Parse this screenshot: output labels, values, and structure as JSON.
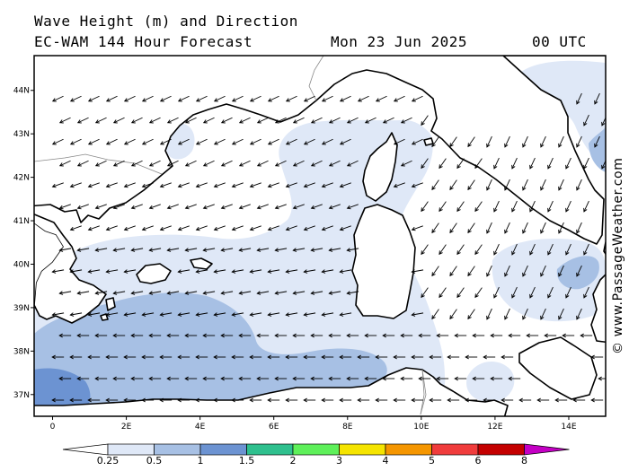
{
  "header": {
    "line1": "Wave Height (m) and Direction",
    "line2": "EC-WAM 144 Hour Forecast",
    "date": "Mon 23 Jun 2025",
    "time": "00 UTC"
  },
  "copyright": "© www.PassageWeather.com",
  "map": {
    "lon_range": [
      -0.5,
      15
    ],
    "lat_range": [
      36.5,
      44.8
    ],
    "lon_ticks": [
      {
        "lon": 0,
        "label": "0"
      },
      {
        "lon": 2,
        "label": "2E"
      },
      {
        "lon": 4,
        "label": "4E"
      },
      {
        "lon": 6,
        "label": "6E"
      },
      {
        "lon": 8,
        "label": "8E"
      },
      {
        "lon": 10,
        "label": "10E"
      },
      {
        "lon": 12,
        "label": "12E"
      },
      {
        "lon": 14,
        "label": "14E"
      }
    ],
    "lat_ticks": [
      {
        "lat": 37,
        "label": "37N"
      },
      {
        "lat": 38,
        "label": "38N"
      },
      {
        "lat": 39,
        "label": "39N"
      },
      {
        "lat": 40,
        "label": "40N"
      },
      {
        "lat": 41,
        "label": "41N"
      },
      {
        "lat": 42,
        "label": "42N"
      },
      {
        "lat": 43,
        "label": "43N"
      },
      {
        "lat": 44,
        "label": "44N"
      }
    ],
    "land_color": "#ffffff",
    "coast_color": "#000000",
    "wave_bands": [
      {
        "range": "0.25-0.5",
        "color": "#dfe8f7"
      },
      {
        "range": "0.5-1",
        "color": "#a7c0e4"
      },
      {
        "range": "1-1.5",
        "color": "#6c93d2"
      }
    ]
  },
  "legend": {
    "labels": [
      "0.25",
      "0.5",
      "1",
      "1.5",
      "2",
      "3",
      "4",
      "5",
      "6",
      "8"
    ],
    "colors": [
      "#dfe8f7",
      "#a7c0e4",
      "#6c93d2",
      "#2fc08e",
      "#5ef05a",
      "#f5e400",
      "#f59600",
      "#f03c3c",
      "#c40000",
      "#c400c4"
    ]
  }
}
